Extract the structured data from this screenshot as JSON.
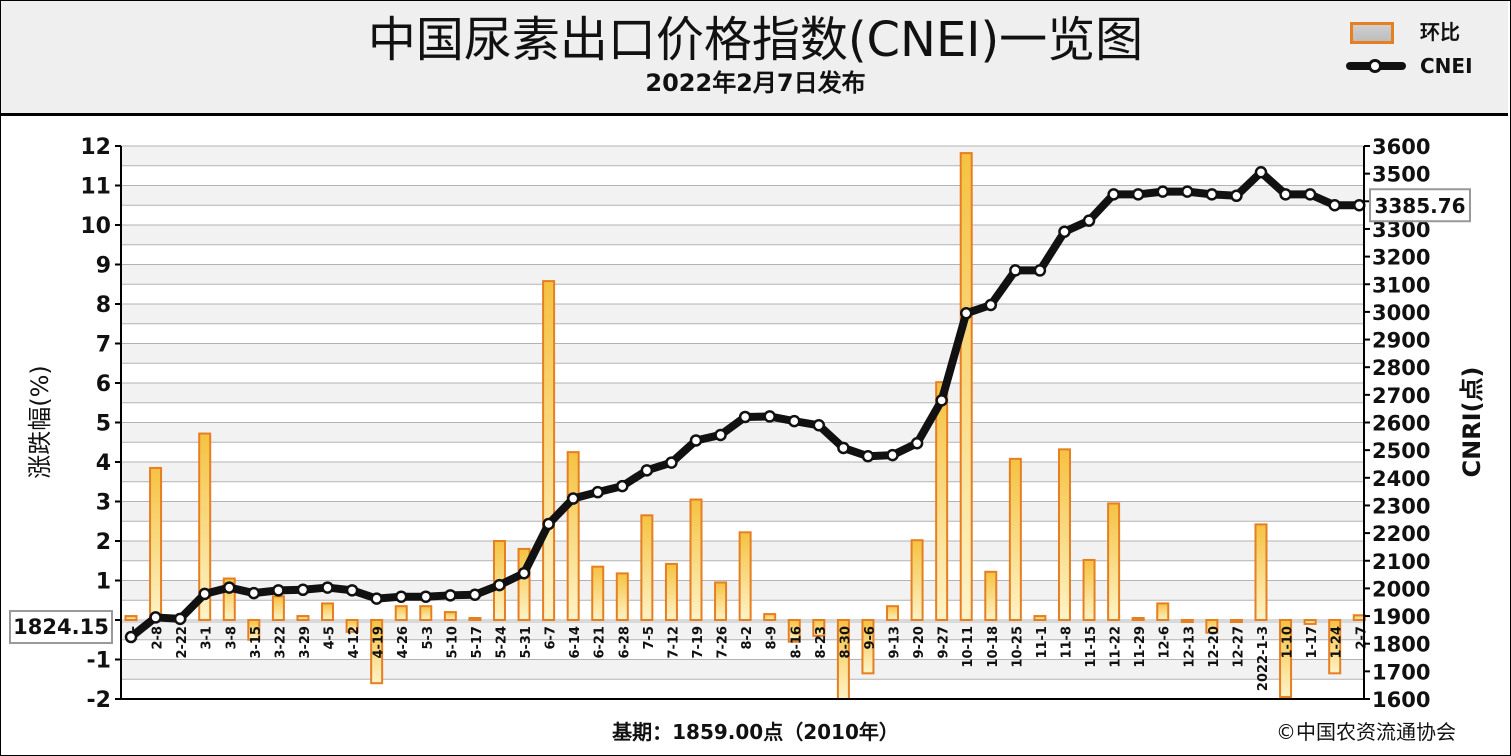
{
  "header": {
    "title": "中国尿素出口价格指数(CNEI)一览图",
    "subtitle": "2022年2月7日发布"
  },
  "legend": {
    "bar_label": "环比",
    "line_label": "CNEI"
  },
  "footer": {
    "base_note": "基期：1859.00点（2010年）",
    "copyright": "©中国农资流通协会"
  },
  "colors": {
    "bar_stroke": "#e67e22",
    "bar_fill_top": "#f5c242",
    "bar_fill_bottom": "#fdf3c7",
    "line": "#111111",
    "point_fill": "#ffffff",
    "grid": "#b3b3b3",
    "plot_band": "#f2f2f2"
  },
  "chart_data": {
    "type": "bar+line",
    "categories": [
      "2-",
      "2-8",
      "2-22",
      "3-1",
      "3-8",
      "3-15",
      "3-22",
      "3-29",
      "4-5",
      "4-12",
      "4-19",
      "4-26",
      "5-3",
      "5-10",
      "5-17",
      "5-24",
      "5-31",
      "6-7",
      "6-14",
      "6-21",
      "6-28",
      "7-5",
      "7-12",
      "7-19",
      "7-26",
      "8-2",
      "8-9",
      "8-16",
      "8-23",
      "8-30",
      "9-6",
      "9-13",
      "9-20",
      "9-27",
      "10-11",
      "10-18",
      "10-25",
      "11-1",
      "11-8",
      "11-15",
      "11-22",
      "11-29",
      "12-6",
      "12-13",
      "12-20",
      "12-27",
      "2022-1-3",
      "1-10",
      "1-17",
      "1-24",
      "2-7"
    ],
    "ylabel": "涨跌幅(%)",
    "y2label": "CNRI(点)",
    "ylim": [
      -2,
      12
    ],
    "y2lim": [
      1600,
      3600
    ],
    "yticks": [
      "-2",
      "-1",
      "0",
      "1",
      "2",
      "3",
      "4",
      "5",
      "6",
      "7",
      "8",
      "9",
      "10",
      "11",
      "12"
    ],
    "y2ticks": [
      "1600",
      "1700",
      "1800",
      "1900",
      "2000",
      "2100",
      "2200",
      "2300",
      "2400",
      "2500",
      "2600",
      "2700",
      "2800",
      "2900",
      "3000",
      "3100",
      "3200",
      "3300",
      "3400",
      "3500",
      "3600"
    ],
    "series": [
      {
        "name": "环比",
        "type": "bar",
        "axis": "left",
        "values": [
          0.1,
          3.85,
          0.05,
          4.72,
          1.05,
          -0.5,
          0.6,
          0.1,
          0.42,
          -0.3,
          -1.6,
          0.35,
          0.35,
          0.2,
          0.05,
          2.0,
          1.8,
          8.58,
          4.25,
          1.35,
          1.18,
          2.65,
          1.42,
          3.05,
          0.95,
          2.22,
          0.15,
          -0.55,
          -0.4,
          -2.0,
          -1.35,
          0.35,
          2.02,
          6.02,
          11.82,
          1.22,
          4.08,
          0.1,
          4.32,
          1.52,
          2.95,
          0.05,
          0.42,
          -0.05,
          -0.32,
          -0.05,
          2.42,
          -1.95,
          -0.1,
          -1.35,
          0.12
        ]
      },
      {
        "name": "CNEI",
        "type": "line",
        "axis": "right",
        "values": [
          1824.15,
          1895,
          1890,
          1980,
          2003,
          1983,
          1993,
          1995,
          2003,
          1993,
          1963,
          1970,
          1970,
          1975,
          1977,
          2012,
          2055,
          2233,
          2325,
          2348,
          2370,
          2427,
          2455,
          2535,
          2555,
          2620,
          2622,
          2605,
          2590,
          2508,
          2478,
          2482,
          2525,
          2680,
          2995,
          3025,
          3150,
          3150,
          3290,
          3330,
          3425,
          3425,
          3435,
          3435,
          3425,
          3420,
          3505,
          3425,
          3425,
          3385.76,
          3385.76
        ]
      }
    ],
    "annotations": {
      "first_value_label": "1824.15",
      "last_value_label": "3385.76"
    },
    "grid": true
  }
}
